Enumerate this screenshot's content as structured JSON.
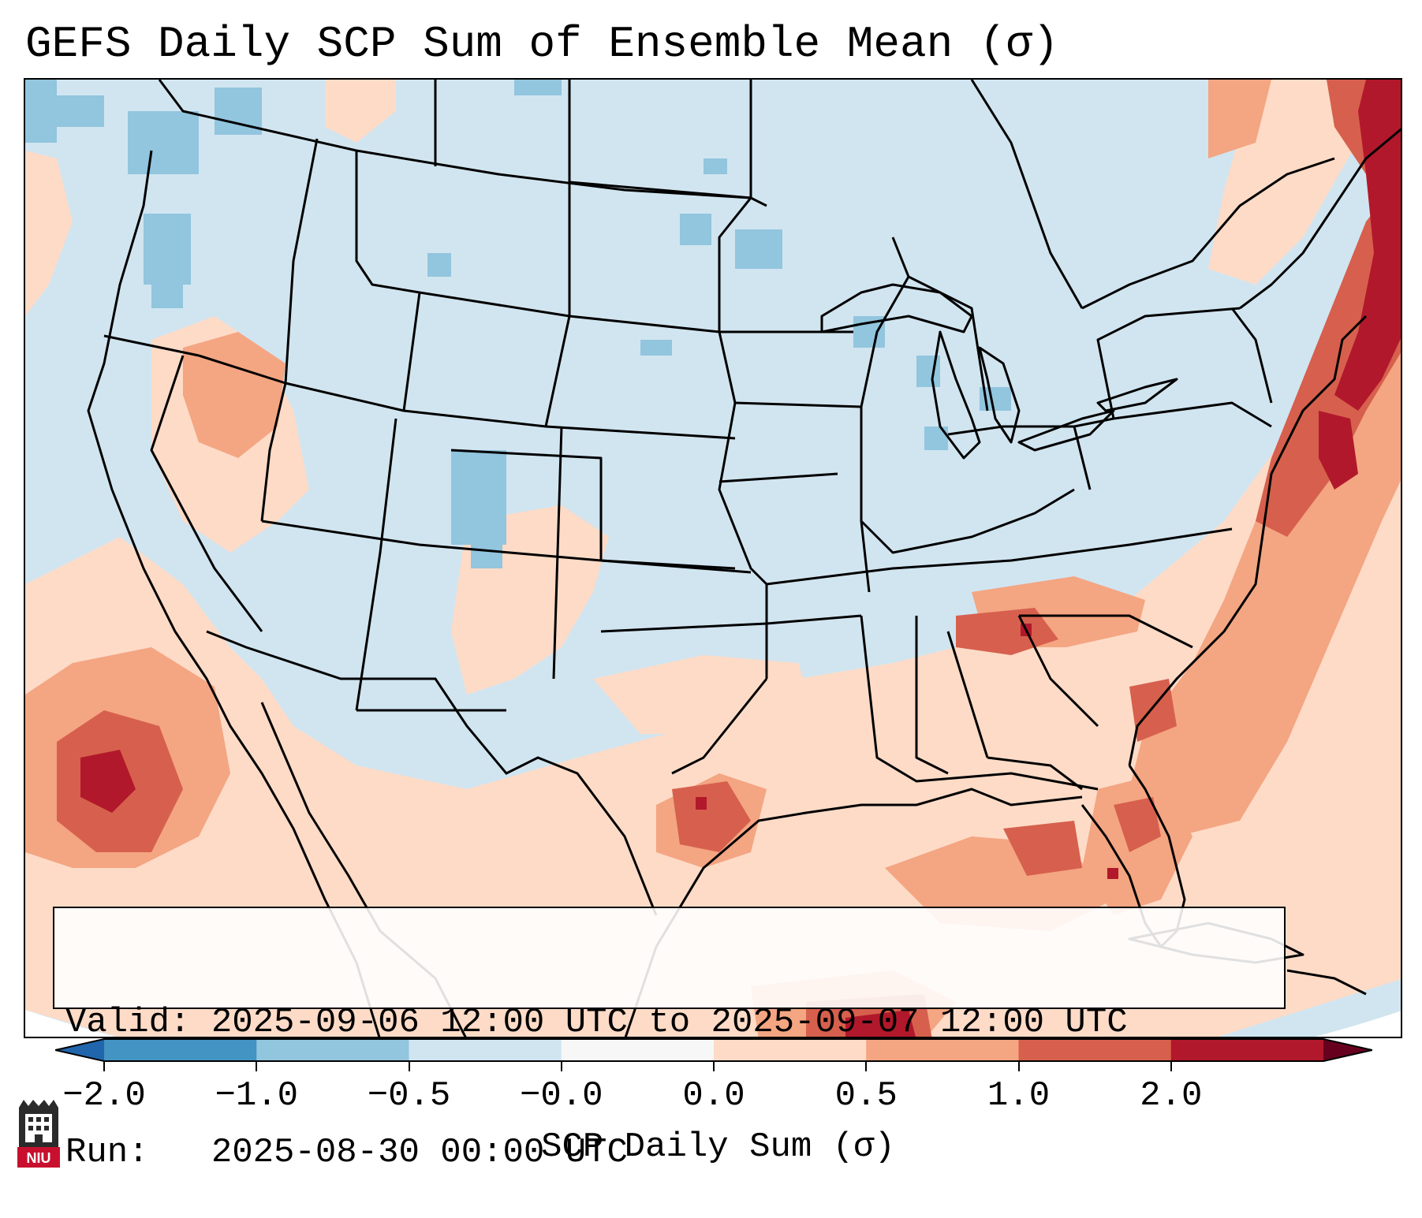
{
  "title": "GEFS Daily SCP Sum of Ensemble Mean (σ)",
  "info": {
    "valid_label": "Valid:",
    "valid_value": "2025-09-06 12:00 UTC to 2025-09-07 12:00 UTC",
    "run_label": "Run:",
    "run_value": "2025-08-30 00:00 UTC"
  },
  "colorbar": {
    "label": "SCP Daily Sum (σ)",
    "ticks": [
      "−2.0",
      "−1.0",
      "−0.5",
      "−0.0",
      "0.0",
      "0.5",
      "1.0",
      "2.0"
    ],
    "colors": [
      "#4393c3",
      "#92c5de",
      "#d1e5f0",
      "#f7f7f7",
      "#fddbc7",
      "#f4a582",
      "#d6604d",
      "#b2182b"
    ],
    "extend": "both"
  },
  "logo": {
    "text": "NIU"
  },
  "colors": {
    "background_ocean": "#d1e5f0",
    "border_lines": "#000000"
  }
}
